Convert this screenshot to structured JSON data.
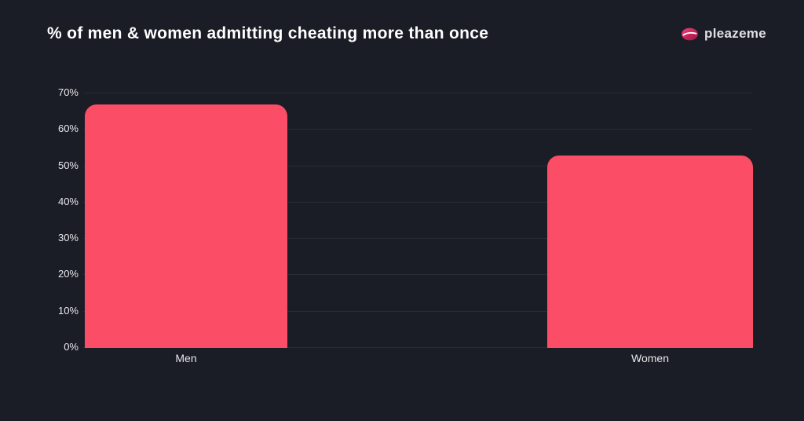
{
  "header": {
    "title": "% of men & women admitting cheating more than once",
    "logo": {
      "text": "pleazeme",
      "icon": "lips-icon"
    }
  },
  "chart_data": {
    "type": "bar",
    "title": "% of men & women admitting cheating more than once",
    "categories": [
      "Men",
      "Women"
    ],
    "values": [
      67,
      53
    ],
    "unit": "%",
    "xlabel": "",
    "ylabel": "",
    "ylim": [
      0,
      70
    ],
    "yticks": [
      0,
      10,
      20,
      30,
      40,
      50,
      60,
      70
    ],
    "yticklabels": [
      "0%",
      "10%",
      "20%",
      "30%",
      "40%",
      "50%",
      "60%",
      "70%"
    ],
    "grid": "horizontal",
    "legend": "none",
    "colors": {
      "bar": "#FB4E66",
      "background": "#1A1C26",
      "gridline": "#282C37",
      "title_text": "#FFFFFF",
      "axis_text": "#E8E9EC",
      "logo_text": "#DFE0E3",
      "logo_lips_dark": "#8E1B47",
      "logo_lips_light": "#F0457F"
    }
  }
}
